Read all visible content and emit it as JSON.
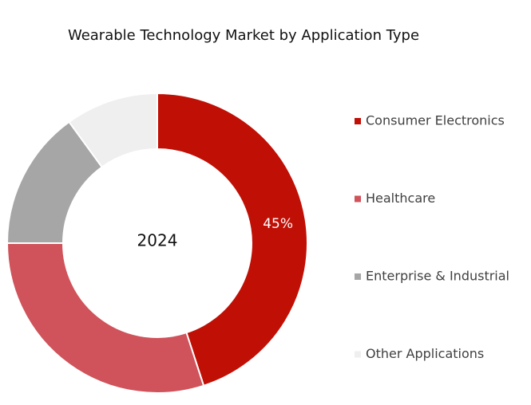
{
  "chart_data": {
    "type": "donut",
    "title": "Wearable Technology Market by Application Type",
    "center_label": "2024",
    "categories": [
      "Consumer Electronics",
      "Healthcare",
      "Enterprise & Industrial",
      "Other Applications"
    ],
    "values": [
      45,
      30,
      15,
      10
    ],
    "value_labels": [
      "45%",
      null,
      null,
      null
    ],
    "colors": [
      "#c00f05",
      "#d0525a",
      "#a6a6a6",
      "#efefef"
    ],
    "legend": "right"
  }
}
